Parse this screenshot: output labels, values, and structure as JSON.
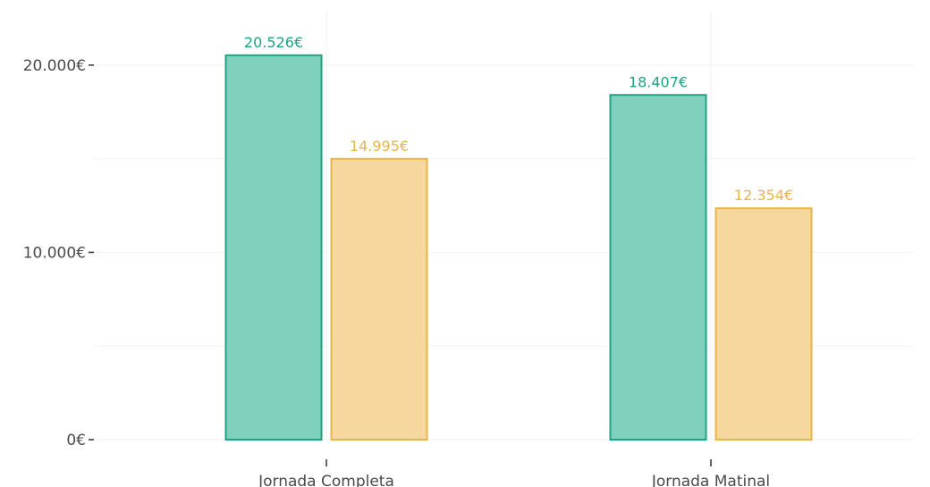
{
  "chart_data": {
    "type": "bar",
    "categories": [
      "Jornada Completa",
      "Jornada Matinal"
    ],
    "series": [
      {
        "values": [
          20526,
          18407
        ],
        "labels": [
          "20.526€",
          "18.407€"
        ],
        "color": "#7fd0bd",
        "stroke": "#1fa383",
        "label_color": "#1fa383"
      },
      {
        "values": [
          14995,
          12354
        ],
        "labels": [
          "14.995€",
          "12.354€"
        ],
        "color": "#f6d79e",
        "stroke": "#e8b54a",
        "label_color": "#e8b54a"
      }
    ],
    "yticks": [
      0,
      10000,
      20000
    ],
    "ytick_labels": [
      "0€",
      "10.000€",
      "20.000€"
    ],
    "ylim": [
      0,
      23000
    ],
    "grid": true,
    "title": "",
    "xlabel": "",
    "ylabel": ""
  }
}
